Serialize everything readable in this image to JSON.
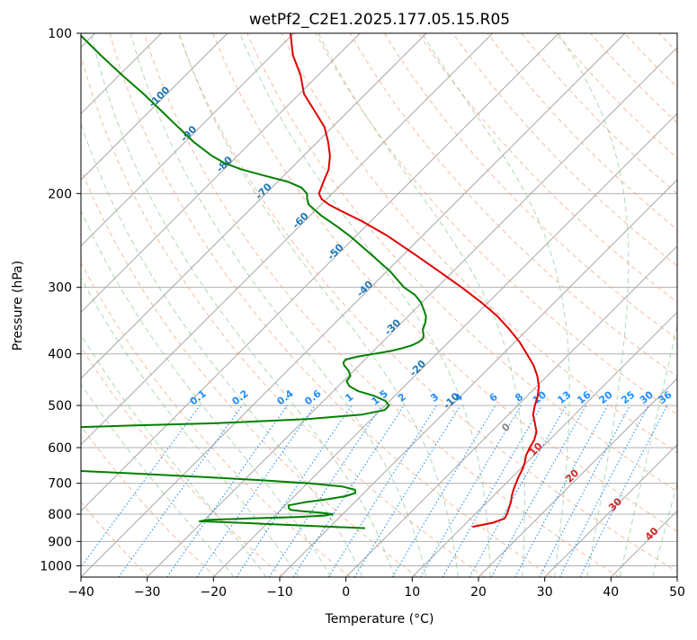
{
  "chart_data": {
    "type": "line",
    "subtype": "skew-t log-p",
    "title": "wetPf2_C2E1.2025.177.05.15.R05",
    "xlabel": "Temperature (°C)",
    "ylabel": "Pressure (hPa)",
    "xlim": [
      -40,
      50
    ],
    "ylim_pressure": [
      1050,
      100
    ],
    "y_scale": "log",
    "grid": true,
    "x_ticks": [
      "−40",
      "−30",
      "−20",
      "−10",
      "0",
      "10",
      "20",
      "30",
      "40",
      "50"
    ],
    "x_tick_values": [
      -40,
      -30,
      -20,
      -10,
      0,
      10,
      20,
      30,
      40,
      50
    ],
    "y_ticks": [
      "100",
      "200",
      "300",
      "400",
      "500",
      "600",
      "700",
      "800",
      "900",
      "1000"
    ],
    "y_tick_values": [
      100,
      200,
      300,
      400,
      500,
      600,
      700,
      800,
      900,
      1000
    ],
    "dry_adiabat_labels": [
      "-100",
      "-90",
      "-80",
      "-70",
      "-60",
      "-50",
      "-40",
      "-30",
      "-20",
      "-10"
    ],
    "mixing_ratio_labels": [
      "0.1",
      "0.2",
      "0.4",
      "0.6",
      "1",
      "1.5",
      "2",
      "3",
      "4",
      "6",
      "8",
      "10",
      "13",
      "16",
      "20",
      "25",
      "30",
      "36"
    ],
    "moist_adiabat_labels": [
      "0",
      "10",
      "20",
      "30",
      "40"
    ],
    "series": [
      {
        "role": "temperature",
        "color": "#e00000",
        "pressure": [
          845,
          830,
          815,
          800,
          780,
          760,
          740,
          720,
          700,
          680,
          660,
          640,
          620,
          600,
          580,
          560,
          540,
          520,
          500,
          480,
          460,
          440,
          420,
          400,
          380,
          360,
          340,
          320,
          300,
          280,
          260,
          240,
          225,
          215,
          210,
          205,
          200,
          190,
          180,
          170,
          160,
          150,
          140,
          130,
          120,
          110,
          100
        ],
        "temp": [
          11.5,
          14,
          15.1,
          14.8,
          14.2,
          13.6,
          12.8,
          12.1,
          11.5,
          10.9,
          10.4,
          9.7,
          8.8,
          8.2,
          7.7,
          6.8,
          5.3,
          3.7,
          2.6,
          1.6,
          0.3,
          -1.5,
          -3.7,
          -6.4,
          -9.3,
          -12.7,
          -16.5,
          -21.1,
          -26.3,
          -32.1,
          -38.4,
          -45.3,
          -51.5,
          -56.3,
          -58.7,
          -60.7,
          -62,
          -63.1,
          -64.2,
          -66,
          -68.4,
          -71.2,
          -75.1,
          -79.3,
          -82.6,
          -86.8,
          -90.5
        ]
      },
      {
        "role": "dewpoint",
        "color": "#008000",
        "pressure": [
          850,
          840,
          830,
          825,
          820,
          815,
          810,
          805,
          800,
          795,
          790,
          785,
          780,
          770,
          760,
          750,
          740,
          730,
          720,
          710,
          700,
          690,
          680,
          670,
          660,
          650,
          640,
          630,
          620,
          610,
          600,
          590,
          580,
          570,
          560,
          550,
          545,
          540,
          530,
          520,
          510,
          500,
          490,
          480,
          470,
          460,
          450,
          440,
          430,
          420,
          415,
          410,
          405,
          400,
          395,
          390,
          385,
          380,
          375,
          370,
          360,
          350,
          340,
          330,
          320,
          310,
          300,
          280,
          260,
          240,
          230,
          220,
          210,
          205,
          200,
          195,
          190,
          185,
          180,
          175,
          170,
          160,
          150,
          140,
          130,
          120,
          110,
          100
        ],
        "temp": [
          -4.5,
          -14.5,
          -24.5,
          -30.5,
          -29.5,
          -23.5,
          -16.5,
          -12.5,
          -11.5,
          -13.5,
          -16.5,
          -18.5,
          -19,
          -19.5,
          -17.5,
          -14.5,
          -12.3,
          -11.3,
          -11.8,
          -14.2,
          -19.6,
          -28,
          -37.8,
          -48.7,
          -60.5,
          -72.4,
          -80,
          -84,
          -86,
          -87,
          -87.5,
          -87.5,
          -86.5,
          -84,
          -78.3,
          -64.5,
          -54.7,
          -43,
          -29.5,
          -22.1,
          -19.4,
          -19.4,
          -20.7,
          -23,
          -26.2,
          -28.3,
          -29.5,
          -29.7,
          -30.8,
          -32.3,
          -32.8,
          -32.9,
          -31.6,
          -29.5,
          -27.4,
          -26,
          -25,
          -24.5,
          -24.4,
          -24.7,
          -25.8,
          -26.4,
          -27.3,
          -28.7,
          -30.2,
          -32.2,
          -35,
          -39.5,
          -45,
          -51,
          -54.5,
          -58.3,
          -61.8,
          -62.9,
          -63.8,
          -65.5,
          -68.5,
          -73,
          -77.5,
          -81,
          -83.8,
          -88.7,
          -93.3,
          -98.2,
          -103.5,
          -109.5,
          -115.8,
          -122.5
        ]
      }
    ]
  }
}
